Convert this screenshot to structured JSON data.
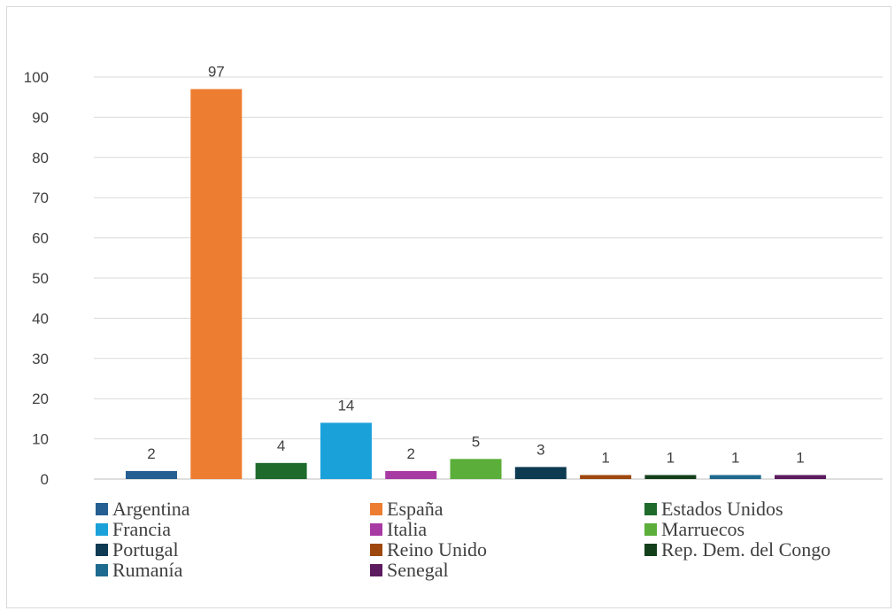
{
  "chart_data": {
    "type": "bar",
    "title": "",
    "xlabel": "",
    "ylabel": "",
    "ylim": [
      0,
      100
    ],
    "yticks": [
      0,
      10,
      20,
      30,
      40,
      50,
      60,
      70,
      80,
      90,
      100
    ],
    "grid": true,
    "legend_position": "bottom",
    "categories": [
      "Argentina",
      "España",
      "Estados Unidos",
      "Francia",
      "Italia",
      "Marruecos",
      "Portugal",
      "Reino Unido",
      "Rep. Dem. del Congo",
      "Rumanía",
      "Senegal"
    ],
    "values": [
      2,
      97,
      4,
      14,
      2,
      5,
      3,
      1,
      1,
      1,
      1
    ],
    "colors": [
      "#255E91",
      "#ED7D31",
      "#1E6B2C",
      "#1BA1DA",
      "#A83AA3",
      "#5BAE3A",
      "#0E3A52",
      "#9E480E",
      "#13401B",
      "#1E6A8E",
      "#5B1B5E"
    ]
  }
}
